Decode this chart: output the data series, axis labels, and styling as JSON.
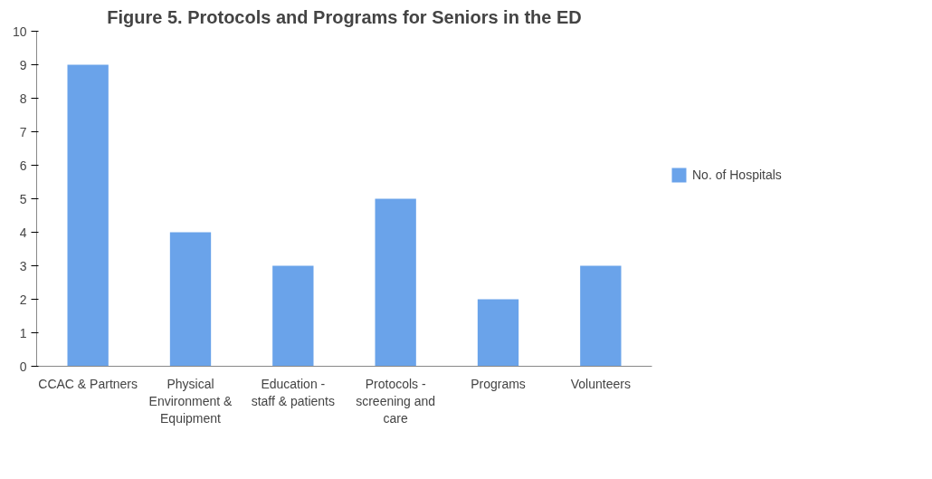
{
  "chart_data": {
    "type": "bar",
    "title": "Figure 5. Protocols and Programs for Seniors in the ED",
    "categories": [
      "CCAC & Partners",
      "Physical Environment & Equipment",
      "Education - staff & patients",
      "Protocols - screening and care",
      "Programs",
      "Volunteers"
    ],
    "series": [
      {
        "name": "No. of Hospitals",
        "color": "#6aa3ea",
        "values": [
          9,
          4,
          3,
          5,
          2,
          3
        ]
      }
    ],
    "ylim": [
      0,
      10
    ],
    "yticks": [
      0,
      1,
      2,
      3,
      4,
      5,
      6,
      7,
      8,
      9,
      10
    ],
    "grid": false,
    "legend": "right"
  }
}
